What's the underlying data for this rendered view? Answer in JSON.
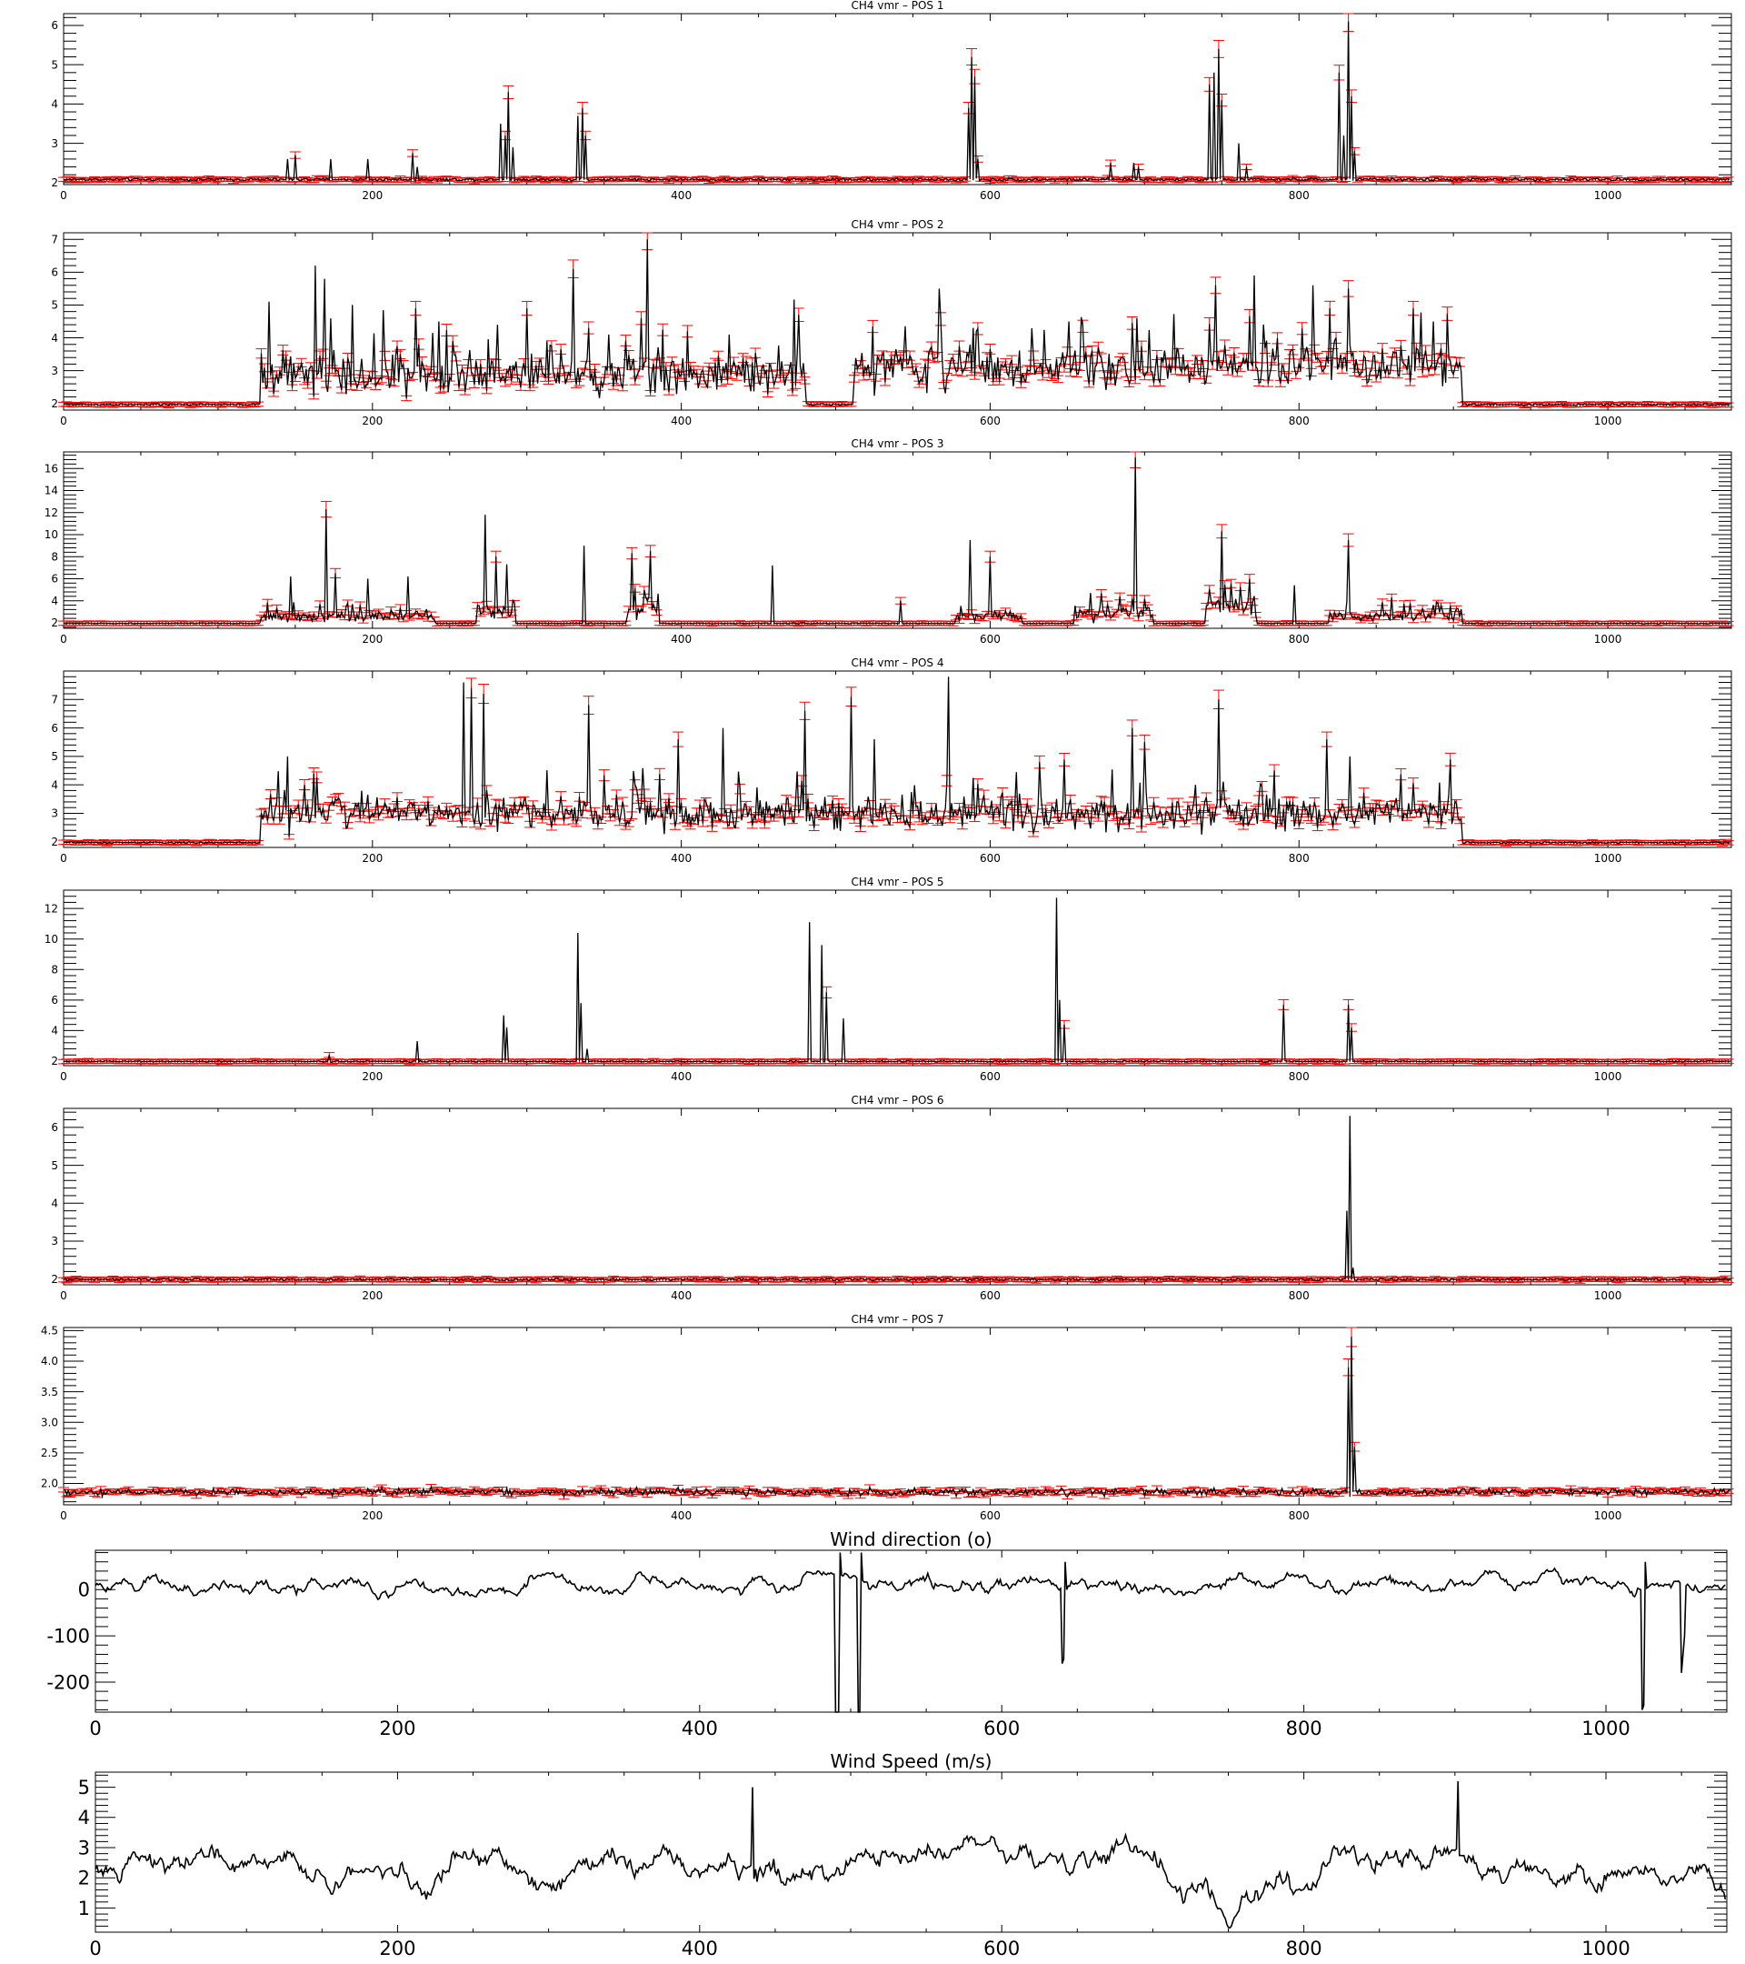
{
  "colors": {
    "background": "#ffffff",
    "series": "#000000",
    "error_bars": "#ff0000",
    "axes": "#000000"
  },
  "chart_data": [
    {
      "type": "line",
      "title": "CH4 vmr – POS 1",
      "xlim": [
        0,
        1080
      ],
      "ylim": [
        1.95,
        6.3
      ],
      "xticks": [
        0,
        200,
        400,
        600,
        800,
        1000
      ],
      "yticks": [
        2,
        3,
        4,
        5,
        6
      ],
      "error_bars": true,
      "baseline": 2.08,
      "noise": 0.025,
      "spikes": [
        [
          145,
          2.6
        ],
        [
          150,
          2.7
        ],
        [
          173,
          2.6
        ],
        [
          197,
          2.6
        ],
        [
          226,
          2.75
        ],
        [
          229,
          2.4
        ],
        [
          283,
          3.5
        ],
        [
          286,
          3.2
        ],
        [
          288,
          4.3
        ],
        [
          291,
          2.9
        ],
        [
          333,
          3.7
        ],
        [
          336,
          3.9
        ],
        [
          338,
          3.2
        ],
        [
          586,
          3.9
        ],
        [
          588,
          5.2
        ],
        [
          590,
          4.7
        ],
        [
          592,
          2.6
        ],
        [
          678,
          2.5
        ],
        [
          693,
          2.5
        ],
        [
          696,
          2.4
        ],
        [
          742,
          4.5
        ],
        [
          745,
          4.8
        ],
        [
          748,
          5.4
        ],
        [
          750,
          4.1
        ],
        [
          761,
          3.0
        ],
        [
          766,
          2.4
        ],
        [
          826,
          4.8
        ],
        [
          829,
          3.2
        ],
        [
          832,
          6.1
        ],
        [
          834,
          4.2
        ],
        [
          836,
          2.8
        ]
      ],
      "active": null
    },
    {
      "type": "line",
      "title": "CH4 vmr – POS 2",
      "xlim": [
        0,
        1080
      ],
      "ylim": [
        1.8,
        7.2
      ],
      "xticks": [
        0,
        200,
        400,
        600,
        800,
        1000
      ],
      "yticks": [
        2,
        3,
        4,
        5,
        6,
        7
      ],
      "error_bars": true,
      "baseline": 1.97,
      "noise": 0.02,
      "spikes": [
        [
          133,
          5.1
        ],
        [
          163,
          6.2
        ],
        [
          169,
          5.8
        ],
        [
          187,
          5.0
        ],
        [
          228,
          4.9
        ],
        [
          243,
          4.5
        ],
        [
          281,
          4.4
        ],
        [
          300,
          4.9
        ],
        [
          330,
          6.1
        ],
        [
          378,
          7.0
        ],
        [
          404,
          4.2
        ],
        [
          431,
          4.1
        ],
        [
          476,
          4.7
        ],
        [
          567,
          5.5
        ],
        [
          589,
          4.3
        ],
        [
          651,
          4.5
        ],
        [
          695,
          4.6
        ],
        [
          746,
          5.6
        ],
        [
          771,
          5.9
        ],
        [
          809,
          5.6
        ],
        [
          832,
          5.5
        ],
        [
          874,
          4.9
        ]
      ],
      "active": [
        [
          128,
          480,
          2.9,
          0.7,
          0.12
        ],
        [
          512,
          905,
          3.1,
          0.7,
          0.12
        ]
      ]
    },
    {
      "type": "line",
      "title": "CH4 vmr – POS 3",
      "xlim": [
        0,
        1080
      ],
      "ylim": [
        1.5,
        17.5
      ],
      "xticks": [
        0,
        200,
        400,
        600,
        800,
        1000
      ],
      "yticks": [
        2,
        4,
        6,
        8,
        10,
        12,
        14,
        16
      ],
      "error_bars": true,
      "baseline": 1.95,
      "noise": 0.03,
      "spikes": [
        [
          147,
          6.2
        ],
        [
          170,
          12.3
        ],
        [
          176,
          6.5
        ],
        [
          197,
          6.0
        ],
        [
          223,
          6.2
        ],
        [
          273,
          11.8
        ],
        [
          280,
          8.0
        ],
        [
          287,
          7.3
        ],
        [
          337,
          9.0
        ],
        [
          368,
          8.3
        ],
        [
          380,
          8.5
        ],
        [
          459,
          7.2
        ],
        [
          542,
          4.0
        ],
        [
          587,
          9.5
        ],
        [
          600,
          8.0
        ],
        [
          665,
          4.7
        ],
        [
          694,
          17.0
        ],
        [
          750,
          10.3
        ],
        [
          768,
          6.0
        ],
        [
          797,
          5.4
        ],
        [
          832,
          9.5
        ],
        [
          860,
          4.3
        ]
      ],
      "active": [
        [
          128,
          240,
          2.5,
          0.6,
          0.18
        ],
        [
          268,
          292,
          3.0,
          1.0,
          0.25
        ],
        [
          365,
          385,
          3.0,
          0.8,
          0.25
        ],
        [
          578,
          620,
          2.6,
          0.6,
          0.2
        ],
        [
          655,
          705,
          2.8,
          0.8,
          0.2
        ],
        [
          740,
          772,
          3.5,
          1.0,
          0.25
        ],
        [
          820,
          905,
          2.6,
          0.6,
          0.2
        ]
      ]
    },
    {
      "type": "line",
      "title": "CH4 vmr – POS 4",
      "xlim": [
        0,
        1080
      ],
      "ylim": [
        1.8,
        8.0
      ],
      "xticks": [
        0,
        200,
        400,
        600,
        800,
        1000
      ],
      "yticks": [
        2,
        3,
        4,
        5,
        6,
        7
      ],
      "error_bars": true,
      "baseline": 1.97,
      "noise": 0.02,
      "spikes": [
        [
          145,
          5.0
        ],
        [
          162,
          4.4
        ],
        [
          259,
          7.6
        ],
        [
          264,
          7.4
        ],
        [
          272,
          7.2
        ],
        [
          340,
          6.8
        ],
        [
          398,
          5.6
        ],
        [
          427,
          6.0
        ],
        [
          480,
          6.6
        ],
        [
          510,
          7.1
        ],
        [
          525,
          5.6
        ],
        [
          573,
          7.8
        ],
        [
          632,
          4.8
        ],
        [
          692,
          6.0
        ],
        [
          700,
          5.5
        ],
        [
          748,
          7.0
        ],
        [
          818,
          5.6
        ],
        [
          833,
          5.0
        ]
      ],
      "active": [
        [
          128,
          905,
          3.0,
          0.7,
          0.1
        ]
      ]
    },
    {
      "type": "line",
      "title": "CH4 vmr – POS 5",
      "xlim": [
        0,
        1080
      ],
      "ylim": [
        1.7,
        13.2
      ],
      "xticks": [
        0,
        200,
        400,
        600,
        800,
        1000
      ],
      "yticks": [
        2,
        4,
        6,
        8,
        10,
        12
      ],
      "error_bars": true,
      "baseline": 1.98,
      "noise": 0.03,
      "spikes": [
        [
          172,
          2.4
        ],
        [
          229,
          3.3
        ],
        [
          285,
          5.0
        ],
        [
          287,
          4.2
        ],
        [
          333,
          10.4
        ],
        [
          335,
          5.8
        ],
        [
          339,
          2.8
        ],
        [
          483,
          11.1
        ],
        [
          491,
          9.6
        ],
        [
          494,
          6.5
        ],
        [
          505,
          4.8
        ],
        [
          643,
          12.7
        ],
        [
          645,
          6.0
        ],
        [
          648,
          4.4
        ],
        [
          790,
          5.7
        ],
        [
          832,
          5.7
        ],
        [
          834,
          4.2
        ]
      ],
      "active": null
    },
    {
      "type": "line",
      "title": "CH4 vmr – POS 6",
      "xlim": [
        0,
        1080
      ],
      "ylim": [
        1.85,
        6.5
      ],
      "xticks": [
        0,
        200,
        400,
        600,
        800,
        1000
      ],
      "yticks": [
        2,
        3,
        4,
        5,
        6
      ],
      "error_bars": true,
      "baseline": 1.99,
      "noise": 0.02,
      "spikes": [
        [
          831,
          3.8
        ],
        [
          833,
          6.3
        ],
        [
          835,
          2.3
        ]
      ],
      "active": null
    },
    {
      "type": "line",
      "title": "CH4 vmr – POS 7",
      "xlim": [
        0,
        1080
      ],
      "ylim": [
        1.65,
        4.55
      ],
      "xticks": [
        0,
        200,
        400,
        600,
        800,
        1000
      ],
      "yticks": [
        2.0,
        2.5,
        3.0,
        3.5,
        4.0,
        4.5
      ],
      "ytick_labels": [
        "2.0",
        "2.5",
        "3.0",
        "3.5",
        "4.0",
        "4.5"
      ],
      "error_bars": true,
      "baseline": 1.86,
      "noise": 0.04,
      "spikes": [
        [
          832,
          3.9
        ],
        [
          834,
          4.4
        ],
        [
          836,
          2.6
        ]
      ],
      "active": null
    },
    {
      "type": "line",
      "title": "Wind direction (o)",
      "xlim": [
        0,
        1080
      ],
      "ylim": [
        -265,
        85
      ],
      "xticks": [
        0,
        200,
        400,
        600,
        800,
        1000
      ],
      "yticks": [
        -200,
        -100,
        0
      ],
      "error_bars": false,
      "series_kind": "walk",
      "mean": 10,
      "sigma": 30,
      "drops": [
        [
          490,
          -265
        ],
        [
          491,
          -265
        ],
        [
          492,
          -265
        ],
        [
          493,
          80
        ],
        [
          505,
          -265
        ],
        [
          506,
          -265
        ],
        [
          507,
          80
        ],
        [
          640,
          -160
        ],
        [
          641,
          -150
        ],
        [
          642,
          60
        ],
        [
          1024,
          -260
        ],
        [
          1025,
          -250
        ],
        [
          1026,
          60
        ],
        [
          1050,
          -180
        ],
        [
          1051,
          -140
        ],
        [
          1052,
          -100
        ]
      ]
    },
    {
      "type": "line",
      "title": "Wind Speed (m/s)",
      "xlim": [
        0,
        1080
      ],
      "ylim": [
        0.2,
        5.5
      ],
      "xticks": [
        0,
        200,
        400,
        600,
        800,
        1000
      ],
      "yticks": [
        1,
        2,
        3,
        4,
        5
      ],
      "error_bars": false,
      "series_kind": "walk",
      "mean": 2.3,
      "sigma": 0.9,
      "drops": [
        [
          435,
          5.0
        ],
        [
          902,
          5.2
        ]
      ]
    }
  ]
}
